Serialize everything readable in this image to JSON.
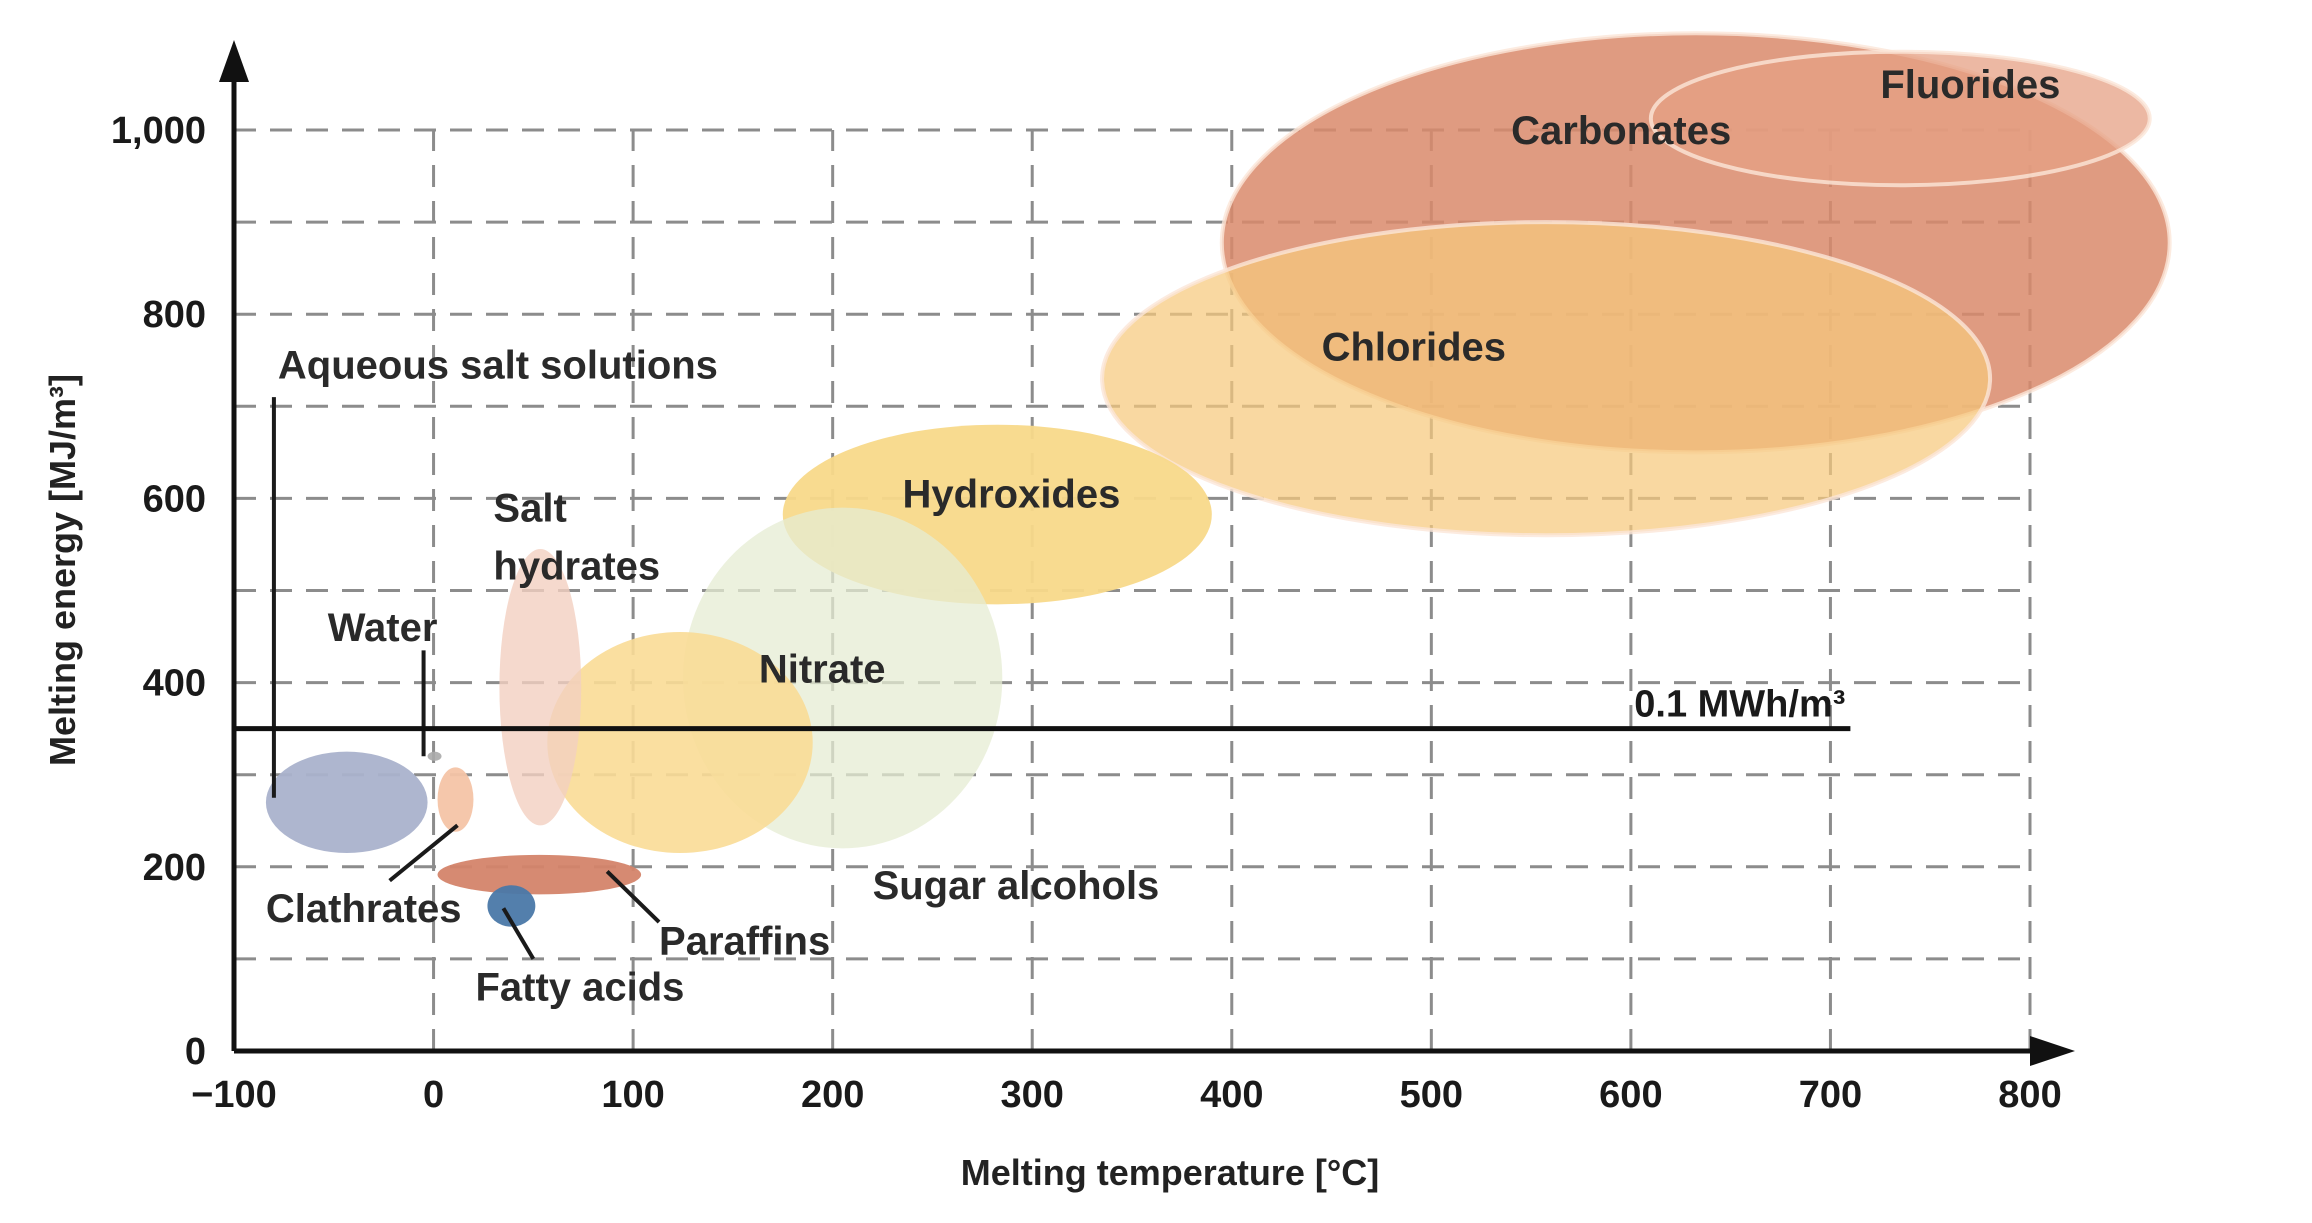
{
  "chart_data": {
    "type": "scatter",
    "xlabel": "Melting temperature [°C]",
    "ylabel": "Melting energy [MJ/m³]",
    "xlim": [
      -100,
      800
    ],
    "ylim": [
      0,
      1000
    ],
    "x_ticks": [
      {
        "value": -100,
        "label": "−100"
      },
      {
        "value": 0,
        "label": "0"
      },
      {
        "value": 100,
        "label": "100"
      },
      {
        "value": 200,
        "label": "200"
      },
      {
        "value": 300,
        "label": "300"
      },
      {
        "value": 400,
        "label": "400"
      },
      {
        "value": 500,
        "label": "500"
      },
      {
        "value": 600,
        "label": "600"
      },
      {
        "value": 700,
        "label": "700"
      },
      {
        "value": 800,
        "label": "800"
      }
    ],
    "y_ticks": [
      {
        "value": 0,
        "label": "0"
      },
      {
        "value": 200,
        "label": "200"
      },
      {
        "value": 400,
        "label": "400"
      },
      {
        "value": 600,
        "label": "600"
      },
      {
        "value": 800,
        "label": "800"
      },
      {
        "value": 1000,
        "label": "1,000"
      }
    ],
    "grid": true,
    "reference_line": {
      "y": 350,
      "x_range": [
        -100,
        710
      ],
      "label": "0.1 MWh/m³"
    },
    "regions": [
      {
        "name": "Carbonates",
        "x_range": [
          395,
          870
        ],
        "y_range": [
          650,
          1105
        ],
        "color": "#d9896b",
        "opacity": 0.85,
        "label_at": [
          540,
          985
        ]
      },
      {
        "name": "Fluorides",
        "x_range": [
          610,
          860
        ],
        "y_range": [
          940,
          1085
        ],
        "color": "#e5a084",
        "opacity": 0.75,
        "label_at": [
          725,
          1035
        ]
      },
      {
        "name": "Chlorides",
        "x_range": [
          335,
          780
        ],
        "y_range": [
          560,
          900
        ],
        "color": "#f6c97d",
        "opacity": 0.72,
        "label_at": [
          445,
          750
        ]
      },
      {
        "name": "Hydroxides",
        "x_range": [
          175,
          390
        ],
        "y_range": [
          485,
          680
        ],
        "color": "#f8d98a",
        "opacity": 0.95,
        "label_at": [
          235,
          590
        ]
      },
      {
        "name": "Nitrate",
        "x_range": [
          125,
          285
        ],
        "y_range": [
          220,
          590
        ],
        "color": "#e6ecd3",
        "opacity": 0.75,
        "label_at": [
          163,
          400
        ]
      },
      {
        "name": "Sugar alcohols",
        "x_range": [
          57,
          190
        ],
        "y_range": [
          215,
          455
        ],
        "color": "#f9dc96",
        "opacity": 0.9,
        "label_at": [
          220,
          165
        ]
      },
      {
        "name": "Salt hydrates",
        "x_range": [
          33,
          74
        ],
        "y_range": [
          245,
          545
        ],
        "color": "#f3cfc0",
        "opacity": 0.8,
        "label_lines": [
          "Salt",
          "hydrates"
        ],
        "label_at": [
          30,
          575
        ]
      },
      {
        "name": "Aqueous salt solutions",
        "x_range": [
          -84,
          -3
        ],
        "y_range": [
          215,
          325
        ],
        "color": "#aab2cc",
        "opacity": 0.95,
        "label_at": [
          -78,
          730
        ],
        "pointer": [
          [
            -80,
            710
          ],
          [
            -80,
            275
          ]
        ]
      },
      {
        "name": "Water",
        "x_range": [
          -3,
          4
        ],
        "y_range": [
          315,
          325
        ],
        "color": "#aaaaaa",
        "opacity": 0.9,
        "label_at": [
          -53,
          445
        ],
        "pointer": [
          [
            -5,
            435
          ],
          [
            -5,
            320
          ]
        ]
      },
      {
        "name": "Clathrates",
        "x_range": [
          2,
          20
        ],
        "y_range": [
          238,
          308
        ],
        "color": "#f4c4a6",
        "opacity": 0.95,
        "label_at": [
          -84,
          140
        ],
        "pointer": [
          [
            -22,
            185
          ],
          [
            12,
            245
          ]
        ]
      },
      {
        "name": "Paraffins",
        "x_range": [
          2,
          104
        ],
        "y_range": [
          170,
          213
        ],
        "color": "#d4846a",
        "opacity": 0.95,
        "label_at": [
          113,
          105
        ],
        "pointer": [
          [
            113,
            140
          ],
          [
            87,
            195
          ]
        ]
      },
      {
        "name": "Fatty acids",
        "x_range": [
          27,
          51
        ],
        "y_range": [
          135,
          180
        ],
        "color": "#4a78a8",
        "opacity": 0.95,
        "label_at": [
          21,
          55
        ],
        "pointer": [
          [
            50,
            100
          ],
          [
            35,
            155
          ]
        ]
      }
    ]
  }
}
